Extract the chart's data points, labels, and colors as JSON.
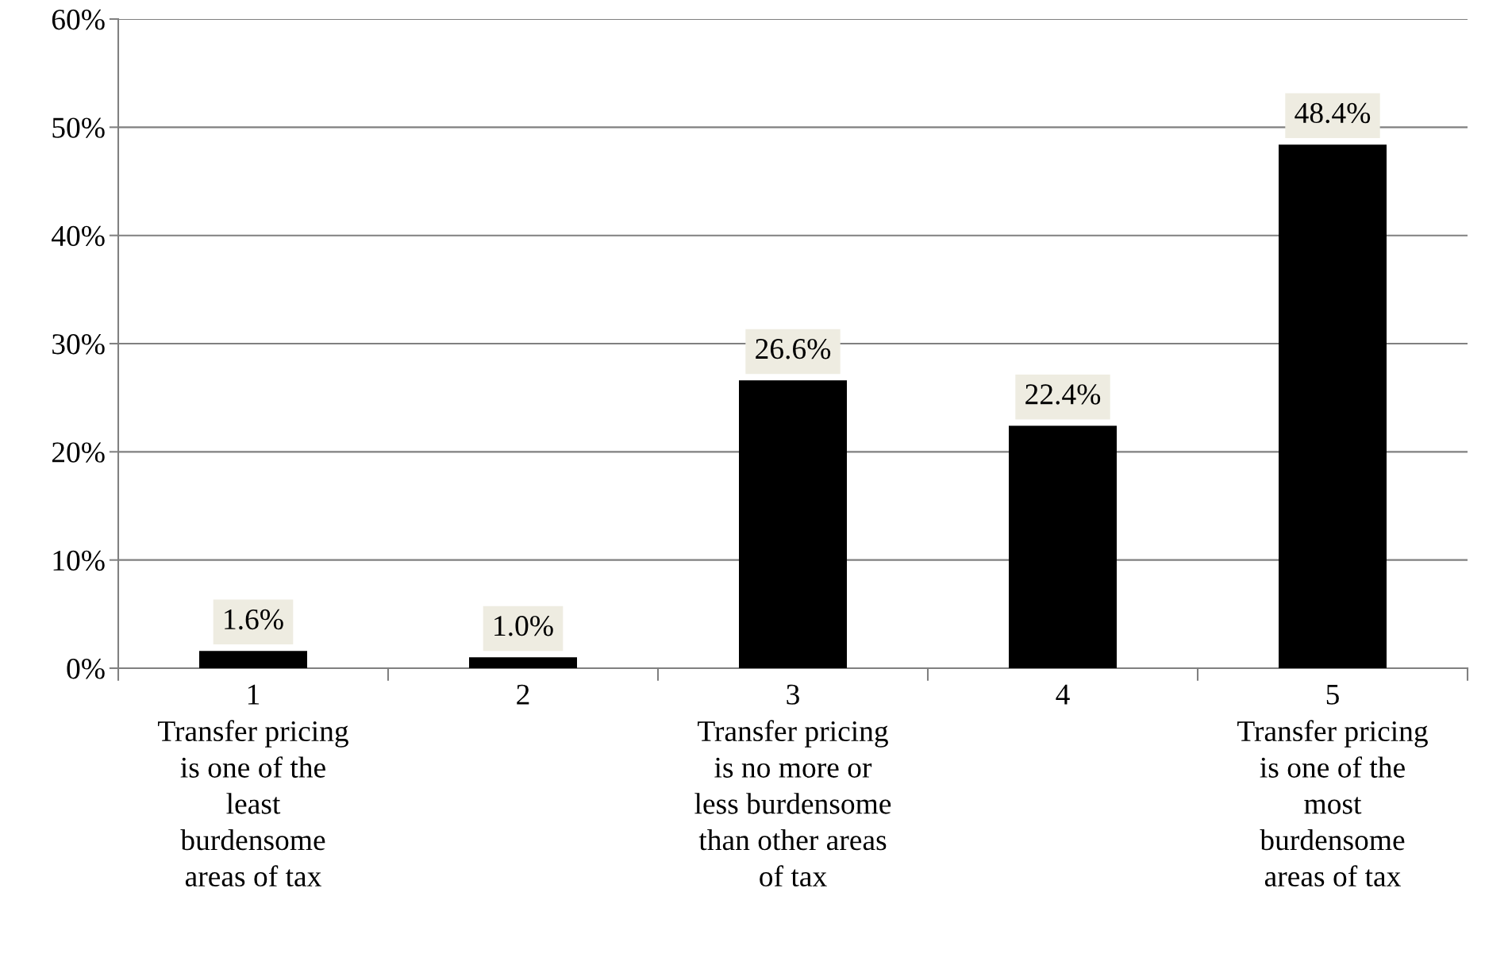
{
  "chart_data": {
    "type": "bar",
    "categories": [
      "1\nTransfer pricing\nis one of the\nleast\nburdensome\nareas of tax",
      "2",
      "3\nTransfer pricing\nis no more or\nless burdensome\nthan other areas\nof tax",
      "4",
      "5\nTransfer pricing\nis one of the\nmost\nburdensome\nareas of tax"
    ],
    "values": [
      1.6,
      1.0,
      26.6,
      22.4,
      48.4
    ],
    "value_labels": [
      "1.6%",
      "1.0%",
      "26.6%",
      "22.4%",
      "48.4%"
    ],
    "color": "#000000",
    "ylim": [
      0,
      60
    ],
    "yticks": [
      {
        "value": 0,
        "label": "0%"
      },
      {
        "value": 10,
        "label": "10%"
      },
      {
        "value": 20,
        "label": "20%"
      },
      {
        "value": 30,
        "label": "30%"
      },
      {
        "value": 40,
        "label": "40%"
      },
      {
        "value": 50,
        "label": "50%"
      },
      {
        "value": 60,
        "label": "60%"
      }
    ],
    "grid": "y",
    "legend": false
  }
}
